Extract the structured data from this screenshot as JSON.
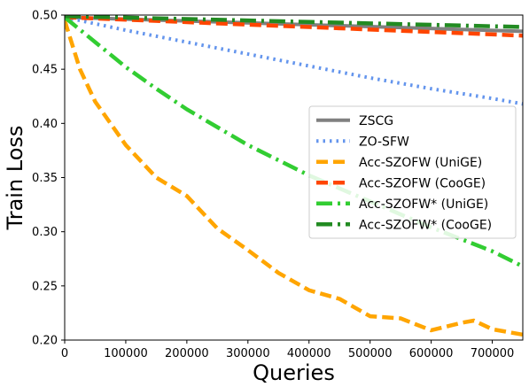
{
  "chart_data": {
    "type": "line",
    "xlabel": "Queries",
    "ylabel": "Train Loss",
    "xlim": [
      0,
      750000
    ],
    "ylim": [
      0.2,
      0.5
    ],
    "x_ticks": [
      0,
      100000,
      200000,
      300000,
      400000,
      500000,
      600000,
      700000
    ],
    "x_tick_labels": [
      "0",
      "100000",
      "200000",
      "300000",
      "400000",
      "500000",
      "600000",
      "700000"
    ],
    "y_ticks": [
      0.2,
      0.25,
      0.3,
      0.35,
      0.4,
      0.45,
      0.5
    ],
    "y_tick_labels": [
      "0.20",
      "0.25",
      "0.30",
      "0.35",
      "0.40",
      "0.45",
      "0.50"
    ],
    "grid": false,
    "legend_position": "center-right",
    "series": [
      {
        "name": "ZSCG",
        "color": "#808080",
        "dash": "solid",
        "x": [
          0,
          750000
        ],
        "y": [
          0.498,
          0.485
        ]
      },
      {
        "name": "ZO-SFW",
        "color": "#6495ed",
        "dash": "dotted",
        "x": [
          0,
          100000,
          200000,
          300000,
          400000,
          500000,
          600000,
          700000,
          750000
        ],
        "y": [
          0.498,
          0.486,
          0.475,
          0.464,
          0.453,
          0.442,
          0.432,
          0.423,
          0.418
        ]
      },
      {
        "name": "Acc-SZOFW (UniGE)",
        "color": "#ffa500",
        "dash": "dashed",
        "x": [
          0,
          25000,
          50000,
          100000,
          150000,
          200000,
          250000,
          300000,
          350000,
          400000,
          450000,
          500000,
          550000,
          600000,
          650000,
          670000,
          700000,
          750000
        ],
        "y": [
          0.495,
          0.45,
          0.42,
          0.38,
          0.35,
          0.333,
          0.303,
          0.283,
          0.262,
          0.246,
          0.238,
          0.222,
          0.22,
          0.209,
          0.216,
          0.218,
          0.21,
          0.205
        ]
      },
      {
        "name": "Acc-SZOFW (CooGE)",
        "color": "#ff4500",
        "dash": "dashed",
        "x": [
          0,
          750000
        ],
        "y": [
          0.498,
          0.481
        ]
      },
      {
        "name": "Acc-SZOFW* (UniGE)",
        "color": "#32cd32",
        "dash": "dashdot",
        "x": [
          0,
          50000,
          100000,
          150000,
          200000,
          300000,
          400000,
          500000,
          600000,
          700000,
          750000
        ],
        "y": [
          0.498,
          0.475,
          0.452,
          0.432,
          0.413,
          0.38,
          0.352,
          0.328,
          0.304,
          0.282,
          0.268
        ]
      },
      {
        "name": "Acc-SZOFW* (CooGE)",
        "color": "#228b22",
        "dash": "dashdot",
        "x": [
          0,
          750000
        ],
        "y": [
          0.499,
          0.489
        ]
      }
    ]
  }
}
